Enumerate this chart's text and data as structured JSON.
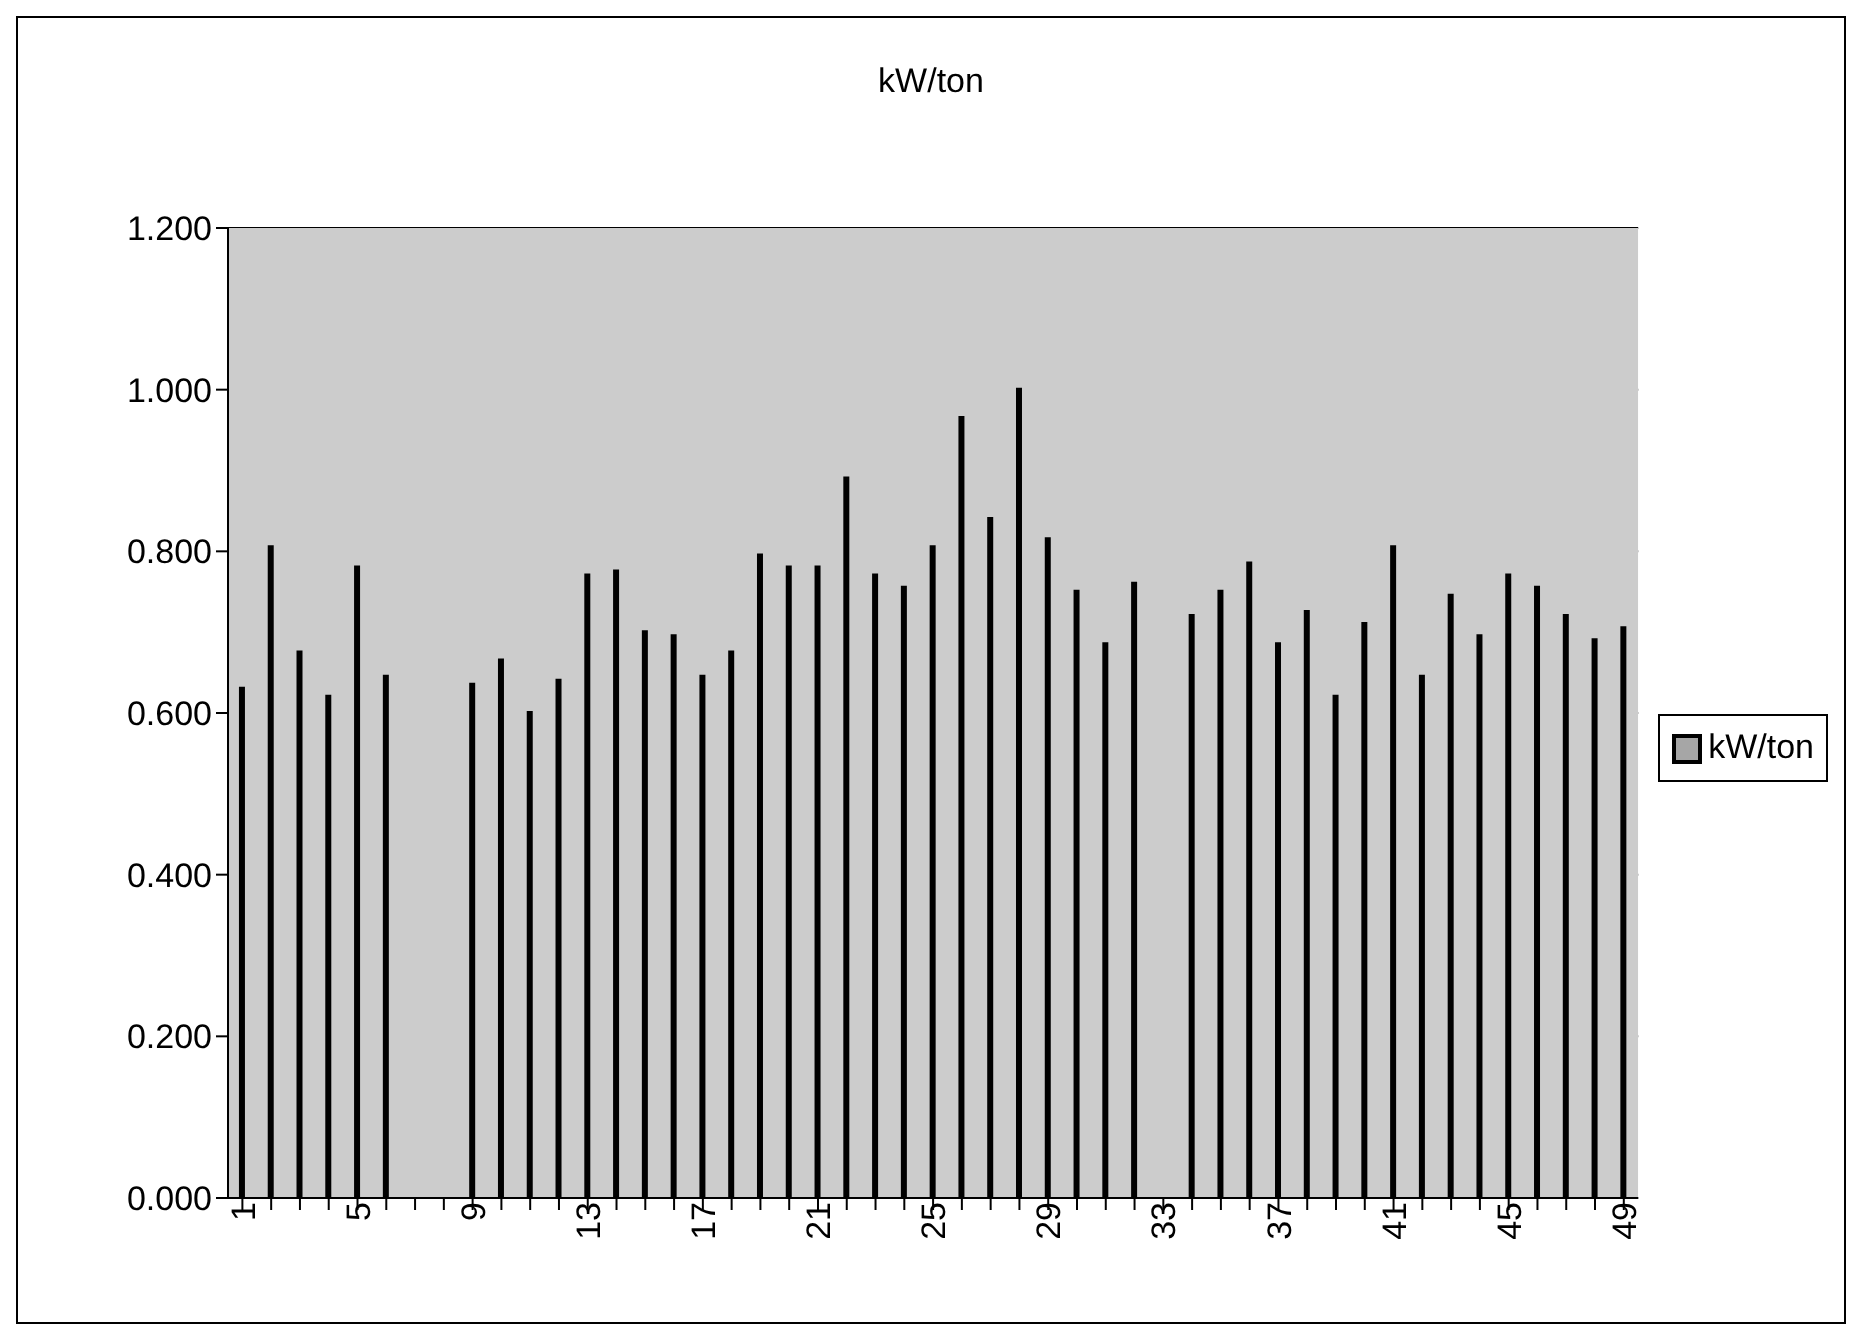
{
  "chart_data": {
    "type": "bar",
    "title": "kW/ton",
    "categories": [
      "1",
      null,
      null,
      null,
      "5",
      null,
      null,
      null,
      "9",
      null,
      null,
      null,
      "13",
      null,
      null,
      null,
      "17",
      null,
      null,
      null,
      "21",
      null,
      null,
      null,
      "25",
      null,
      null,
      null,
      "29",
      null,
      null,
      null,
      "33",
      null,
      null,
      null,
      "37",
      null,
      null,
      null,
      "41",
      null,
      null,
      null,
      "45",
      null,
      null,
      null,
      "49"
    ],
    "series": [
      {
        "name": "kW/ton",
        "color": "#a6a6a6",
        "values": [
          0.63,
          0.805,
          0.675,
          0.62,
          0.78,
          0.645,
          null,
          null,
          0.635,
          0.665,
          0.6,
          0.64,
          0.77,
          0.775,
          0.7,
          0.695,
          0.645,
          0.675,
          0.795,
          0.78,
          0.78,
          0.89,
          0.77,
          0.755,
          0.805,
          0.965,
          0.84,
          1.0,
          0.815,
          0.75,
          0.685,
          0.76,
          null,
          0.72,
          0.75,
          0.785,
          0.685,
          0.725,
          0.62,
          0.71,
          0.805,
          0.645,
          0.745,
          0.695,
          0.77,
          0.755,
          0.72,
          0.69,
          0.705
        ]
      }
    ],
    "ylim": [
      0,
      1.2
    ],
    "yticks": [
      {
        "value": 0,
        "label": "0.000"
      },
      {
        "value": 0.2,
        "label": "0.200"
      },
      {
        "value": 0.4,
        "label": "0.400"
      },
      {
        "value": 0.6,
        "label": "0.600"
      },
      {
        "value": 0.8,
        "label": "0.800"
      },
      {
        "value": 1.0,
        "label": "1.000"
      },
      {
        "value": 1.2,
        "label": "1.200"
      }
    ],
    "grid": "y",
    "legend": "right"
  }
}
